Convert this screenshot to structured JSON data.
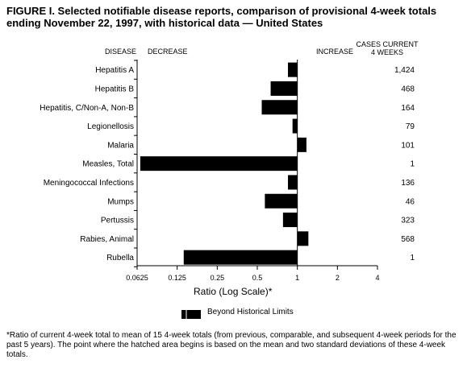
{
  "title": "FIGURE I. Selected notifiable disease reports, comparison of provisional 4-week totals ending November 22, 1997, with historical data — United States",
  "headers": {
    "disease": "DISEASE",
    "decrease": "DECREASE",
    "increase": "INCREASE",
    "cases": "CASES CURRENT",
    "cases_line2": "4 WEEKS"
  },
  "legend": {
    "label": "Beyond Historical Limits"
  },
  "footnote": {
    "mark": "*",
    "text": "Ratio of current 4-week total to mean of 15 4-week totals (from previous, comparable, and subsequent 4-week periods for the past 5 years). The point where the hatched area begins is based on the mean and two standard deviations of these 4-week totals."
  },
  "colors": {
    "bar": "#000000",
    "axis": "#000000"
  },
  "chart_data": {
    "type": "bar",
    "orientation": "horizontal",
    "scale": "log2",
    "xlabel": "Ratio (Log Scale)*",
    "xlim": [
      0.0625,
      4
    ],
    "xticks": [
      0.0625,
      0.125,
      0.25,
      0.5,
      1,
      2,
      4
    ],
    "xtick_labels": [
      "0.0625",
      "0.125",
      "0.25",
      "0.5",
      "1",
      "2",
      "4"
    ],
    "baseline": 1,
    "categories": [
      "Hepatitis A",
      "Hepatitis B",
      "Hepatitis, C/Non-A, Non-B",
      "Legionellosis",
      "Malaria",
      "Measles, Total",
      "Meningococcal Infections",
      "Mumps",
      "Pertussis",
      "Rabies, Animal",
      "Rubella"
    ],
    "values": [
      0.85,
      0.63,
      0.54,
      0.92,
      1.17,
      0.066,
      0.85,
      0.57,
      0.78,
      1.21,
      0.14
    ],
    "cases": [
      "1,424",
      "468",
      "164",
      "79",
      "101",
      "1",
      "136",
      "46",
      "323",
      "568",
      "1"
    ]
  }
}
